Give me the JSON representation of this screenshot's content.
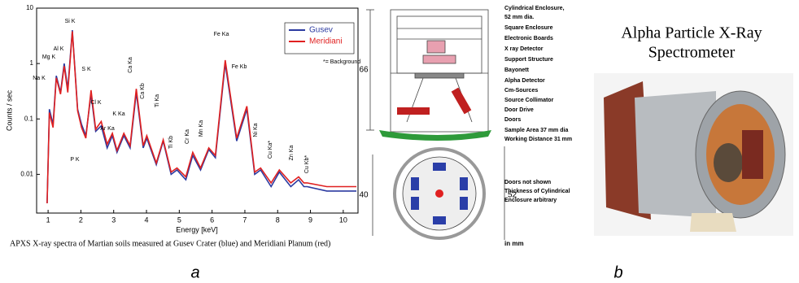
{
  "chart_data": {
    "type": "line",
    "x_label": "Energy [keV]",
    "y_label": "Counts / sec",
    "log_y": true,
    "xlim": [
      0.65,
      10.45
    ],
    "ylim": [
      0.002,
      10
    ],
    "xticks": [
      1,
      2,
      3,
      4,
      5,
      6,
      7,
      8,
      9,
      10
    ],
    "yticks": [
      0.01,
      0.1,
      1,
      10
    ],
    "legend": "upper right",
    "note": "*= Background",
    "caption": "APXS X-ray spectra of Martian soils measured at Gusev Crater (blue) and Meridiani Planum (red)",
    "x": [
      0.97,
      1.04,
      1.15,
      1.25,
      1.38,
      1.49,
      1.6,
      1.74,
      1.9,
      2.02,
      2.15,
      2.31,
      2.45,
      2.62,
      2.8,
      2.96,
      3.1,
      3.31,
      3.5,
      3.69,
      3.9,
      4.01,
      4.3,
      4.51,
      4.75,
      4.93,
      5.2,
      5.41,
      5.65,
      5.9,
      6.1,
      6.4,
      6.75,
      7.06,
      7.3,
      7.48,
      7.8,
      8.05,
      8.4,
      8.64,
      8.8,
      8.9,
      9.5,
      10,
      10.4
    ],
    "series": [
      {
        "name": "Gusev",
        "color": "#2b3aa0",
        "values": [
          0.003,
          0.15,
          0.08,
          0.6,
          0.3,
          1.0,
          0.35,
          4.0,
          0.15,
          0.08,
          0.05,
          0.28,
          0.06,
          0.075,
          0.03,
          0.05,
          0.025,
          0.05,
          0.03,
          0.3,
          0.03,
          0.045,
          0.015,
          0.04,
          0.01,
          0.012,
          0.008,
          0.022,
          0.012,
          0.028,
          0.02,
          1.0,
          0.04,
          0.15,
          0.01,
          0.012,
          0.006,
          0.011,
          0.006,
          0.008,
          0.006,
          0.006,
          0.005,
          0.005,
          0.005
        ]
      },
      {
        "name": "Meridiani",
        "color": "#e02020",
        "values": [
          0.003,
          0.13,
          0.07,
          0.55,
          0.28,
          0.9,
          0.3,
          3.8,
          0.14,
          0.07,
          0.045,
          0.33,
          0.065,
          0.09,
          0.035,
          0.055,
          0.027,
          0.055,
          0.033,
          0.35,
          0.033,
          0.05,
          0.016,
          0.042,
          0.011,
          0.013,
          0.009,
          0.025,
          0.013,
          0.03,
          0.022,
          1.15,
          0.045,
          0.17,
          0.011,
          0.013,
          0.007,
          0.012,
          0.007,
          0.009,
          0.007,
          0.007,
          0.006,
          0.006,
          0.006
        ]
      }
    ],
    "peak_labels": [
      "Na K",
      "Mg K",
      "Al K",
      "Si K",
      "P K",
      "S K",
      "Cl K",
      "Ar Ka",
      "K Ka",
      "Ca Ka",
      "Ca Kb",
      "Ti Ka",
      "Ti Kb",
      "Cr Ka",
      "Mn Ka",
      "Fe Ka",
      "Fe Kb",
      "Ni Ka",
      "Cu Ka*",
      "Zn Ka",
      "Cu Kb*"
    ]
  },
  "panel_labels": [
    "a",
    "b"
  ],
  "diagram": {
    "labels": [
      [
        "Cylindrical Enclosure,",
        "52 mm dia."
      ],
      [
        "Square Enclosure"
      ],
      [
        "Electronic Boards"
      ],
      [
        "X ray Detector"
      ],
      [
        "Support Structure"
      ],
      [
        "Bayonett"
      ],
      [
        "Alpha Detector"
      ],
      [
        "Cm-Sources"
      ],
      [
        "Source Collimator"
      ],
      [
        "Door Drive"
      ],
      [
        "Doors"
      ],
      [
        "Sample Area 37 mm dia",
        "Working Distance 31 mm"
      ],
      [
        "Doors not shown",
        "Thickness of Cylindrical",
        "Enclosure arbitrary"
      ]
    ],
    "dimensions": [
      "66",
      "40",
      "52"
    ],
    "unit": "in mm"
  },
  "photo": {
    "title": [
      "Alpha Particle X-Ray",
      "Spectrometer"
    ]
  }
}
